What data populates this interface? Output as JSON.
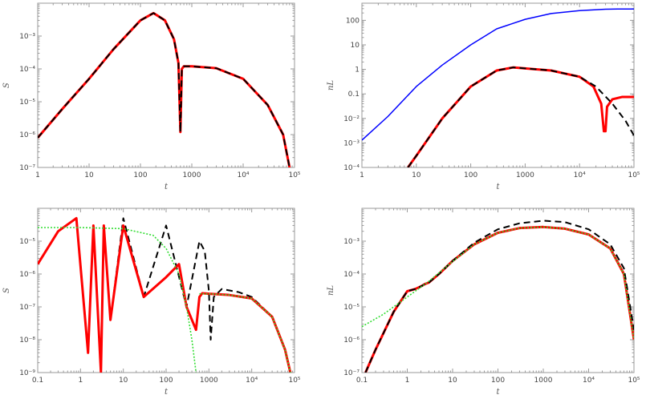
{
  "chart_data": [
    {
      "type": "line",
      "ylabel": "S",
      "xlabel": "t",
      "xscale": "log",
      "yscale": "log",
      "xlim": [
        1,
        100000
      ],
      "ylim": [
        1e-07,
        0.01
      ],
      "x_tick_labels": [
        "1",
        "10",
        "100",
        "1000",
        "10⁴",
        "10⁵"
      ],
      "y_tick_labels": [
        "10⁻⁷",
        "10⁻⁶",
        "10⁻⁵",
        "10⁻⁴",
        "10⁻³"
      ],
      "series": [
        {
          "color": "#ff0000",
          "style": "solid-thick",
          "x": [
            1,
            3,
            10,
            30,
            100,
            180,
            300,
            450,
            550,
            600,
            640,
            700,
            1000,
            3000,
            10000,
            30000,
            60000,
            80000
          ],
          "y": [
            8e-07,
            6e-06,
            5e-05,
            0.0004,
            0.003,
            0.005,
            0.003,
            0.0008,
            0.00015,
            1.2e-06,
            0.0001,
            0.00012,
            0.00012,
            0.000105,
            5e-05,
            8e-06,
            1e-06,
            1e-07
          ]
        },
        {
          "color": "#000000",
          "style": "dashed",
          "x": [
            1,
            3,
            10,
            30,
            100,
            180,
            300,
            450,
            550,
            600,
            640,
            700,
            1000,
            3000,
            10000,
            30000,
            60000,
            80000
          ],
          "y": [
            8e-07,
            6e-06,
            5e-05,
            0.0004,
            0.003,
            0.005,
            0.003,
            0.0008,
            0.00015,
            1.2e-06,
            0.0001,
            0.00012,
            0.00012,
            0.000105,
            5e-05,
            8e-06,
            1e-06,
            1e-07
          ]
        }
      ]
    },
    {
      "type": "line",
      "ylabel": "nL",
      "xlabel": "t",
      "xscale": "log",
      "yscale": "log",
      "xlim": [
        1,
        100000
      ],
      "ylim": [
        0.0001,
        500
      ],
      "x_tick_labels": [
        "1",
        "10",
        "100",
        "1000",
        "10⁴",
        "10⁵"
      ],
      "y_tick_labels": [
        "10⁻⁴",
        "10⁻³",
        "10⁻²",
        "0.1",
        "1",
        "10",
        "100"
      ],
      "series": [
        {
          "color": "#0000ff",
          "style": "solid",
          "x": [
            1,
            3,
            10,
            30,
            100,
            300,
            1000,
            3000,
            10000,
            30000,
            50000,
            100000
          ],
          "y": [
            0.0013,
            0.012,
            0.2,
            1.5,
            10,
            45,
            110,
            190,
            250,
            285,
            290,
            290
          ]
        },
        {
          "color": "#ff0000",
          "style": "solid-thick",
          "x": [
            7,
            10,
            30,
            100,
            300,
            600,
            1000,
            3000,
            10000,
            18000,
            25000,
            28000,
            30000,
            32000,
            40000,
            60000,
            100000
          ],
          "y": [
            0.0001,
            0.0003,
            0.01,
            0.2,
            0.9,
            1.2,
            1.1,
            0.9,
            0.5,
            0.2,
            0.04,
            0.003,
            0.003,
            0.03,
            0.06,
            0.075,
            0.075
          ]
        },
        {
          "color": "#000000",
          "style": "dashed",
          "x": [
            7,
            10,
            30,
            100,
            300,
            600,
            1000,
            3000,
            10000,
            20000,
            40000,
            70000,
            100000
          ],
          "y": [
            0.0001,
            0.0003,
            0.01,
            0.2,
            0.9,
            1.2,
            1.1,
            0.9,
            0.5,
            0.2,
            0.04,
            0.008,
            0.002
          ]
        }
      ]
    },
    {
      "type": "line",
      "ylabel": "S",
      "xlabel": "t",
      "xscale": "log",
      "yscale": "log",
      "xlim": [
        0.1,
        100000
      ],
      "ylim": [
        1e-09,
        0.0001
      ],
      "x_tick_labels": [
        "0.1",
        "1",
        "10",
        "100",
        "1000",
        "10⁴",
        "10⁵"
      ],
      "y_tick_labels": [
        "10⁻⁹",
        "10⁻⁸",
        "10⁻⁷",
        "10⁻⁶",
        "10⁻⁵"
      ],
      "series": [
        {
          "color": "#000000",
          "style": "dashed",
          "x": [
            0.1,
            0.3,
            0.8,
            1.5,
            2.0,
            3.0,
            3.5,
            5,
            10,
            30,
            100,
            300,
            600,
            800,
            1000,
            1100,
            1300,
            2000,
            5000,
            10000,
            30000,
            60000,
            80000
          ],
          "y": [
            2e-06,
            2e-05,
            5e-05,
            4e-09,
            3e-05,
            1e-09,
            3e-05,
            4e-08,
            5e-05,
            2e-07,
            3e-05,
            1e-07,
            1e-05,
            5e-06,
            3e-07,
            1e-08,
            2e-07,
            3.5e-07,
            2.8e-07,
            2e-07,
            5e-08,
            5e-09,
            1e-09
          ]
        },
        {
          "color": "#ff0000",
          "style": "solid-thick",
          "x": [
            0.1,
            0.3,
            0.8,
            1.5,
            2.0,
            3.0,
            3.5,
            5,
            10,
            30,
            100,
            200,
            300,
            500,
            600,
            700,
            1000,
            3000,
            10000,
            30000,
            60000,
            80000
          ],
          "y": [
            2e-06,
            2e-05,
            5e-05,
            4e-09,
            3e-05,
            1e-09,
            3e-05,
            4e-08,
            3e-05,
            2e-07,
            8e-07,
            2e-06,
            1e-07,
            2e-08,
            2e-07,
            2.6e-07,
            2.5e-07,
            2.3e-07,
            1.8e-07,
            5e-08,
            5e-09,
            1e-09
          ]
        },
        {
          "color": "#33dd33",
          "style": "dotted",
          "x": [
            0.1,
            1,
            10,
            50,
            100,
            200,
            300,
            400,
            450,
            500
          ],
          "y": [
            2.6e-05,
            2.6e-05,
            2.4e-05,
            1.5e-05,
            6e-06,
            1e-06,
            1e-07,
            1e-08,
            3e-09,
            1e-09
          ]
        },
        {
          "color": "#33dd33",
          "style": "dotted",
          "x": [
            600,
            1000,
            3000,
            10000,
            30000,
            60000,
            80000
          ],
          "y": [
            2.5e-07,
            2.5e-07,
            2.3e-07,
            1.8e-07,
            5e-08,
            5e-09,
            1e-09
          ]
        }
      ]
    },
    {
      "type": "line",
      "ylabel": "nL",
      "xlabel": "t",
      "xscale": "log",
      "yscale": "log",
      "xlim": [
        0.1,
        100000
      ],
      "ylim": [
        1e-07,
        0.01
      ],
      "x_tick_labels": [
        "0.1",
        "1",
        "10",
        "100",
        "1000",
        "10⁴",
        "10⁵"
      ],
      "y_tick_labels": [
        "10⁻⁷",
        "10⁻⁶",
        "10⁻⁵",
        "10⁻⁴",
        "10⁻³"
      ],
      "series": [
        {
          "color": "#ff0000",
          "style": "solid-thick",
          "x": [
            0.12,
            0.2,
            0.5,
            1,
            1.5,
            2,
            2.5,
            3,
            5,
            10,
            30,
            100,
            300,
            1000,
            3000,
            10000,
            30000,
            60000,
            100000
          ],
          "y": [
            1e-07,
            5e-07,
            7e-06,
            3e-05,
            3.5e-05,
            4.2e-05,
            5e-05,
            5.5e-05,
            0.0001,
            0.00025,
            0.0008,
            0.0018,
            0.0025,
            0.0027,
            0.0024,
            0.0016,
            0.0006,
            0.0001,
            1e-06
          ]
        },
        {
          "color": "#000000",
          "style": "dashed",
          "x": [
            0.12,
            0.2,
            0.5,
            1,
            1.5,
            2,
            2.5,
            3,
            5,
            10,
            30,
            100,
            300,
            1000,
            3000,
            10000,
            30000,
            60000,
            100000
          ],
          "y": [
            1e-07,
            5e-07,
            7e-06,
            3e-05,
            3.5e-05,
            4.2e-05,
            5e-05,
            5.5e-05,
            0.0001,
            0.00025,
            0.0009,
            0.0023,
            0.0035,
            0.0042,
            0.0038,
            0.0023,
            0.0008,
            0.00015,
            2e-06
          ]
        },
        {
          "color": "#33dd33",
          "style": "dotted",
          "x": [
            0.1,
            0.3,
            1,
            3,
            10,
            30,
            100,
            300,
            1000,
            3000,
            10000,
            30000,
            60000,
            100000
          ],
          "y": [
            2.5e-06,
            6e-06,
            2e-05,
            6e-05,
            0.00024,
            0.0008,
            0.0018,
            0.0025,
            0.0027,
            0.0024,
            0.0016,
            0.0006,
            0.0001,
            1e-06
          ]
        }
      ]
    }
  ]
}
